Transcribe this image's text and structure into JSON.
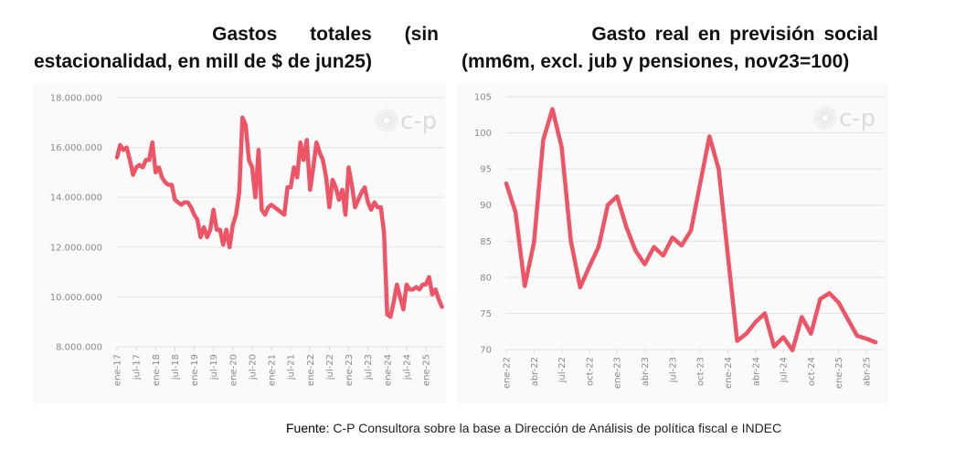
{
  "source": {
    "label": "Fuente:",
    "text": "C-P Consultora sobre la base a Dirección de Análisis de política fiscal e INDEC"
  },
  "watermark": "c-p",
  "colors": {
    "series": "#ef5466",
    "grid": "#e6e6e6",
    "axis_text": "#8a8a8a",
    "panel_bg": "#fafafa"
  },
  "chart_data": [
    {
      "type": "line",
      "title_line1": "Gastos totales (sin",
      "title_line2": "estacionalidad, en mill de $ de jun25)",
      "title": "Gastos totales (sin estacionalidad, en mill de $ de jun25)",
      "xlabel": "",
      "ylabel": "",
      "ylim": [
        8000000,
        18000000
      ],
      "yticks": [
        8000000,
        10000000,
        12000000,
        14000000,
        16000000,
        18000000
      ],
      "ytick_labels": [
        "8.000.000",
        "10.000.000",
        "12.000.000",
        "14.000.000",
        "16.000.000",
        "18.000.000"
      ],
      "xtick_labels": [
        "ene-17",
        "jul-17",
        "ene-18",
        "jul-18",
        "ene-19",
        "jul-19",
        "ene-20",
        "jul-20",
        "ene-21",
        "jul-21",
        "ene-22",
        "jul-22",
        "ene-23",
        "jul-23",
        "ene-24",
        "jul-24",
        "ene-25"
      ],
      "xtick_month_index": [
        0,
        6,
        12,
        18,
        24,
        30,
        36,
        42,
        48,
        54,
        60,
        66,
        72,
        78,
        84,
        90,
        96
      ],
      "grid": true,
      "legend": "none",
      "series": [
        {
          "name": "Gastos totales",
          "start": "ene-17",
          "frequency": "monthly",
          "values": [
            15600000,
            16100000,
            15900000,
            16000000,
            15500000,
            14900000,
            15200000,
            15300000,
            15200000,
            15500000,
            15500000,
            16200000,
            15000000,
            15200000,
            14800000,
            14600000,
            14500000,
            14500000,
            13900000,
            13800000,
            13700000,
            13800000,
            13800000,
            13600000,
            13300000,
            13100000,
            12400000,
            12800000,
            12400000,
            12700000,
            13500000,
            12700000,
            12700000,
            12100000,
            12700000,
            12000000,
            12900000,
            13300000,
            14200000,
            17200000,
            16900000,
            15500000,
            15200000,
            14000000,
            15900000,
            13500000,
            13300000,
            13600000,
            13700000,
            13600000,
            13500000,
            13400000,
            13300000,
            14400000,
            14400000,
            15200000,
            14800000,
            16200000,
            15500000,
            16300000,
            14300000,
            15200000,
            16200000,
            15800000,
            15500000,
            14800000,
            13600000,
            14700000,
            14400000,
            13900000,
            14300000,
            13300000,
            15200000,
            14500000,
            13600000,
            13900000,
            14200000,
            14400000,
            13800000,
            13500000,
            13800000,
            13600000,
            13600000,
            12600000,
            9300000,
            9200000,
            9800000,
            10500000,
            10000000,
            9500000,
            10500000,
            10300000,
            10300000,
            10400000,
            10300000,
            10500000,
            10500000,
            10800000,
            10100000,
            10300000,
            9900000,
            9600000
          ]
        }
      ]
    },
    {
      "type": "line",
      "title_line1": "Gasto real en previsión social",
      "title_line2": "(mm6m, excl. jub y pensiones, nov23=100)",
      "title": "Gasto real en previsión social (mm6m, excl. jub y pensiones, nov23=100)",
      "xlabel": "",
      "ylabel": "",
      "ylim": [
        70,
        105
      ],
      "yticks": [
        70,
        75,
        80,
        85,
        90,
        95,
        100,
        105
      ],
      "ytick_labels": [
        "70",
        "75",
        "80",
        "85",
        "90",
        "95",
        "100",
        "105"
      ],
      "xtick_labels": [
        "ene-22",
        "abr-22",
        "jul-22",
        "oct-22",
        "ene-23",
        "abr-23",
        "jul-23",
        "oct-23",
        "ene-24",
        "abr-24",
        "jul-24",
        "oct-24",
        "ene-25",
        "abr-25"
      ],
      "xtick_month_index": [
        0,
        3,
        6,
        9,
        12,
        15,
        18,
        21,
        24,
        27,
        30,
        33,
        36,
        39
      ],
      "grid": true,
      "legend": "none",
      "series": [
        {
          "name": "Gasto real en previsión social",
          "start": "ene-22",
          "frequency": "monthly",
          "values": [
            93,
            89,
            78.8,
            84.8,
            99,
            103.3,
            98,
            85,
            78.6,
            81.5,
            84.2,
            90,
            91.2,
            87,
            83.7,
            81.8,
            84.2,
            83,
            85.5,
            84.4,
            86.5,
            93,
            99.5,
            95,
            83,
            71.2,
            72.2,
            73.8,
            75,
            70.4,
            71.7,
            69.9,
            74.5,
            72.2,
            77,
            77.8,
            76.5,
            74.2,
            71.9,
            71.5,
            71
          ]
        }
      ]
    }
  ]
}
